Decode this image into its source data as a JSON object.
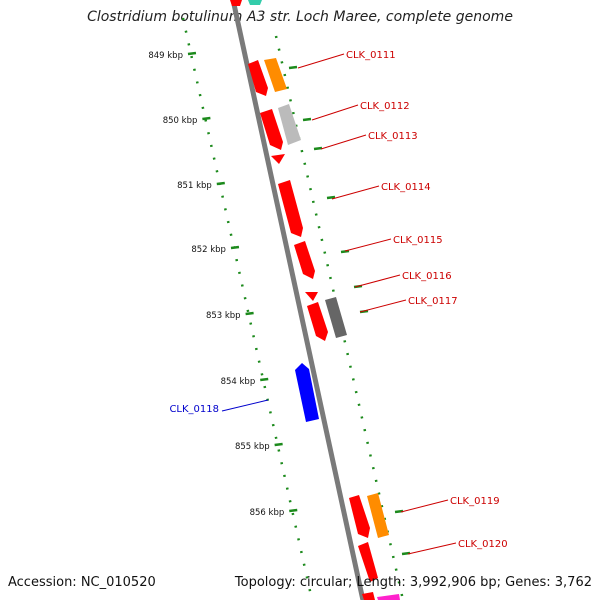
{
  "header": {
    "title": "Clostridium botulinum A3 str. Loch Maree, complete genome"
  },
  "footer": {
    "accession": "Accession: NC_010520",
    "topology": "Topology: circular; Length: 3,992,906 bp; Genes: 3,762"
  },
  "colors": {
    "backbone": "#7a7a7a",
    "tick": "#1c8a1c",
    "forward_label": "#cc0000",
    "reverse_label": "#0000cc",
    "red": "#ff0000",
    "orange": "#ff8c00",
    "light_gray": "#bbbbbb",
    "dark_gray": "#666666",
    "blue": "#0000ff",
    "teal": "#33ccaa",
    "magenta": "#ff22cc"
  },
  "scale": {
    "unit": "kbp",
    "ticks": [
      {
        "label": "849 kbp",
        "kbp": 849
      },
      {
        "label": "850 kbp",
        "kbp": 850
      },
      {
        "label": "851 kbp",
        "kbp": 851
      },
      {
        "label": "852 kbp",
        "kbp": 852
      },
      {
        "label": "853 kbp",
        "kbp": 853
      },
      {
        "label": "854 kbp",
        "kbp": 854
      },
      {
        "label": "855 kbp",
        "kbp": 855
      },
      {
        "label": "856 kbp",
        "kbp": 856
      }
    ]
  },
  "genes": [
    {
      "label": "CLK_0111",
      "strand": "+",
      "color": "red"
    },
    {
      "label": "CLK_0112",
      "strand": "+",
      "color": "red"
    },
    {
      "label": "CLK_0113",
      "strand": "+",
      "color": "red"
    },
    {
      "label": "CLK_0114",
      "strand": "+",
      "color": "red"
    },
    {
      "label": "CLK_0115",
      "strand": "+",
      "color": "red"
    },
    {
      "label": "CLK_0116",
      "strand": "+",
      "color": "red"
    },
    {
      "label": "CLK_0117",
      "strand": "+",
      "color": "red"
    },
    {
      "label": "CLK_0118",
      "strand": "-",
      "color": "blue"
    },
    {
      "label": "CLK_0119",
      "strand": "+",
      "color": "red"
    },
    {
      "label": "CLK_0120",
      "strand": "+",
      "color": "red"
    }
  ]
}
